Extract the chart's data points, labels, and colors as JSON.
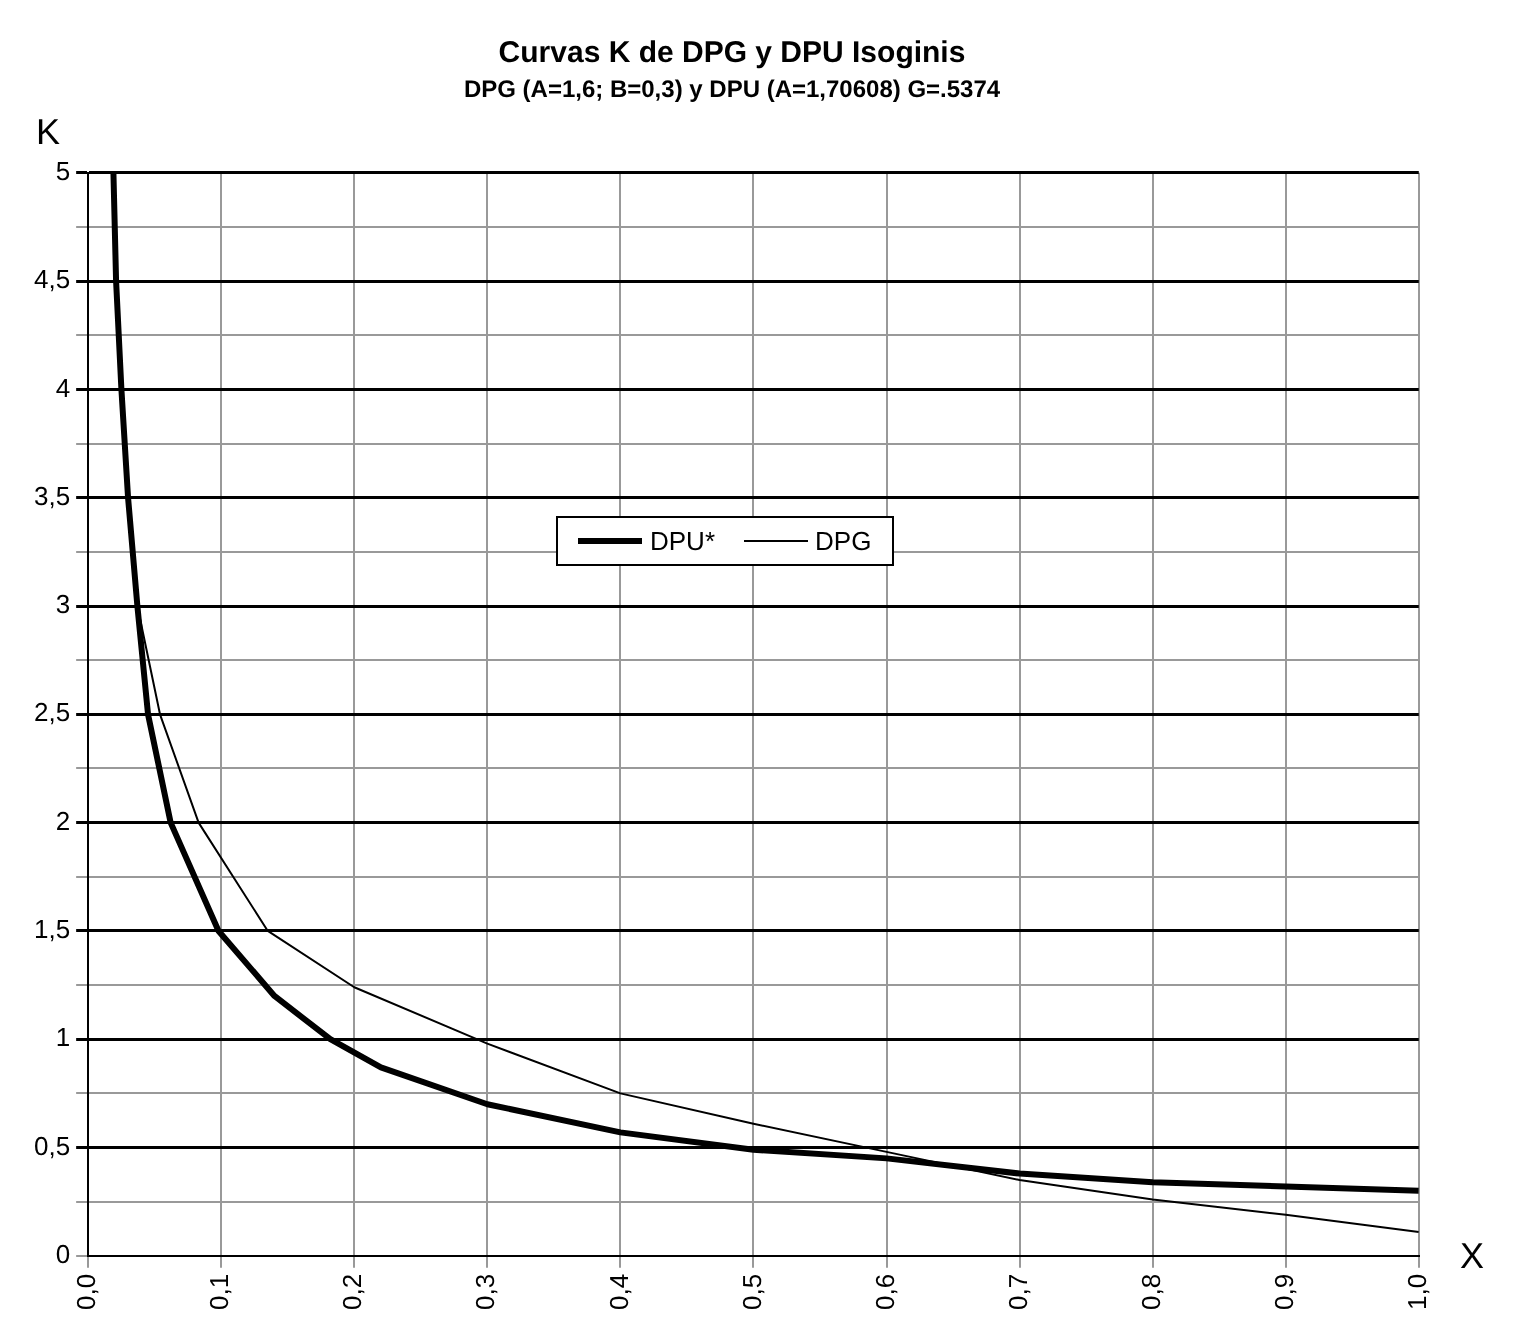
{
  "chart_data": {
    "type": "line",
    "title": "Curvas K de DPG y DPU Isoginis",
    "subtitle": "DPG (A=1,6; B=0,3) y DPU (A=1,70608) G=.5374",
    "xlabel": "X",
    "ylabel": "K",
    "series": [
      {
        "name": "DPU*",
        "color": "#000000",
        "x": [
          0.019,
          0.021,
          0.025,
          0.03,
          0.037,
          0.045,
          0.062,
          0.098,
          0.14,
          0.182,
          0.22,
          0.3,
          0.4,
          0.5,
          0.6,
          0.7,
          0.8,
          0.9,
          1.0
        ],
        "values": [
          5,
          4.5,
          4,
          3.5,
          3,
          2.5,
          2,
          1.5,
          1.2,
          1.0,
          0.87,
          0.7,
          0.57,
          0.49,
          0.45,
          0.38,
          0.34,
          0.32,
          0.3
        ]
      },
      {
        "name": "DPG",
        "color": "#000000",
        "x": [
          0.019,
          0.021,
          0.025,
          0.03,
          0.037,
          0.054,
          0.083,
          0.135,
          0.2,
          0.3,
          0.4,
          0.5,
          0.6,
          0.7,
          0.8,
          0.9,
          1.0
        ],
        "values": [
          5,
          4.5,
          4,
          3.5,
          3,
          2.5,
          2,
          1.5,
          1.24,
          0.98,
          0.75,
          0.61,
          0.48,
          0.35,
          0.26,
          0.19,
          0.11
        ]
      }
    ],
    "xlim": [
      0,
      1
    ],
    "xticks": [
      {
        "value": 0,
        "label": "0,0"
      },
      {
        "value": 0.1,
        "label": "0,1"
      },
      {
        "value": 0.2,
        "label": "0,2"
      },
      {
        "value": 0.3,
        "label": "0,3"
      },
      {
        "value": 0.4,
        "label": "0,4"
      },
      {
        "value": 0.5,
        "label": "0,5"
      },
      {
        "value": 0.6,
        "label": "0,6"
      },
      {
        "value": 0.7,
        "label": "0,7"
      },
      {
        "value": 0.8,
        "label": "0,8"
      },
      {
        "value": 0.9,
        "label": "0,9"
      },
      {
        "value": 1,
        "label": "1,0"
      }
    ],
    "ylim": [
      0,
      5
    ],
    "yticks": [
      0,
      {
        "value": 0.25,
        "label": null
      },
      {
        "value": 0.5,
        "label": "0,5"
      },
      {
        "value": 0.75,
        "label": null
      },
      1,
      {
        "value": 1.25,
        "label": null
      },
      {
        "value": 1.5,
        "label": "1,5"
      },
      {
        "value": 1.75,
        "label": null
      },
      2,
      {
        "value": 2.25,
        "label": null
      },
      {
        "value": 2.5,
        "label": "2,5"
      },
      {
        "value": 2.75,
        "label": null
      },
      3,
      {
        "value": 3.25,
        "label": null
      },
      {
        "value": 3.5,
        "label": "3,5"
      },
      {
        "value": 3.75,
        "label": null
      },
      4,
      {
        "value": 4.25,
        "label": null
      },
      {
        "value": 4.5,
        "label": "4,5"
      },
      {
        "value": 4.75,
        "label": null
      },
      5
    ],
    "grid": true,
    "legend": "center",
    "marker": "none",
    "line_style": "solid"
  }
}
